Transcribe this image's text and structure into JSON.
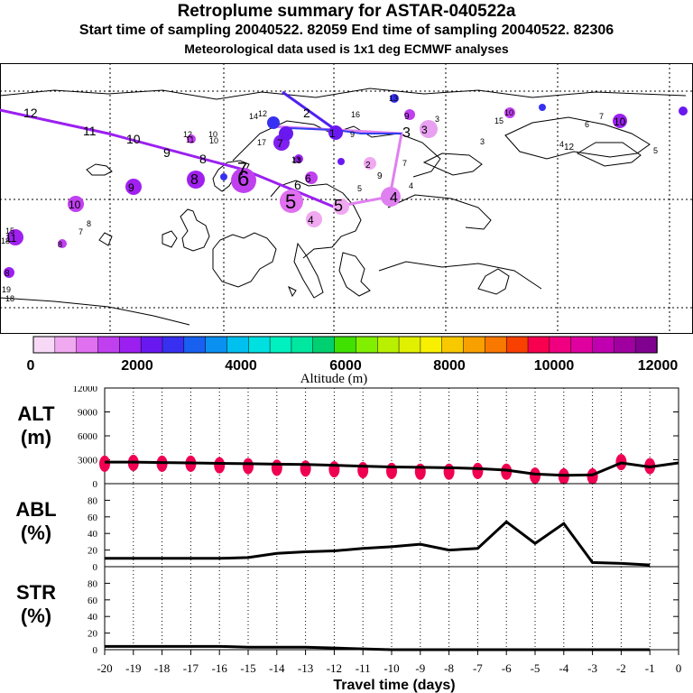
{
  "header": {
    "title": "Retroplume summary for ASTAR-040522a",
    "subtitle_line1": "Start time of sampling 20040522. 82059     End time of sampling 20040522. 82306",
    "subtitle_line2": "Meteorological data used is 1x1 deg ECMWF analyses"
  },
  "colorbar": {
    "title": "Altitude (m)",
    "tick_labels": [
      "0",
      "2000",
      "4000",
      "6000",
      "8000",
      "10000",
      "12000"
    ],
    "colors": [
      "#f7d9f7",
      "#f0a8f0",
      "#e070f0",
      "#c040f0",
      "#9b20f0",
      "#6a18f0",
      "#3830f0",
      "#1860f0",
      "#0a90f0",
      "#00c0f0",
      "#00e0e0",
      "#00f0c0",
      "#00e8a0",
      "#00d070",
      "#40e000",
      "#80f000",
      "#b8f000",
      "#e0f000",
      "#f8f000",
      "#f8c800",
      "#f8a000",
      "#f87800",
      "#f84000",
      "#f80050",
      "#f00080",
      "#e000a0",
      "#c000b0",
      "#a000a0",
      "#800090"
    ]
  },
  "map": {
    "trajectories": [
      {
        "name": "main",
        "color": "#9b20f0",
        "labels": [
          "12",
          "11",
          "10",
          "9",
          "8",
          "7",
          "6",
          "5"
        ]
      },
      {
        "name": "north",
        "color": "#5020f0",
        "labels": [
          "2"
        ]
      },
      {
        "name": "east",
        "color": "#e080f0",
        "labels": [
          "4",
          "3"
        ]
      }
    ],
    "cluster_labels": [
      "15",
      "14",
      "12",
      "11",
      "10",
      "9",
      "8",
      "7",
      "6",
      "5",
      "4",
      "3",
      "2",
      "1",
      "16",
      "17",
      "18",
      "19",
      "13"
    ]
  },
  "chart_data": [
    {
      "type": "line",
      "panel": "ALT",
      "title": "ALT",
      "ylabel": "(m)",
      "ylim": [
        0,
        12000
      ],
      "yticks": [
        "0",
        "3000",
        "6000",
        "9000",
        "12000"
      ],
      "x": [
        -20,
        -19,
        -18,
        -17,
        -16,
        -15,
        -14,
        -13,
        -12,
        -11,
        -10,
        -9,
        -8,
        -7,
        -6,
        -5,
        -4,
        -3,
        -2,
        -1,
        0
      ],
      "values": [
        2700,
        2700,
        2650,
        2600,
        2550,
        2500,
        2450,
        2400,
        2300,
        2200,
        2100,
        2050,
        2000,
        1900,
        1700,
        1200,
        1050,
        1100,
        2600,
        2100,
        2600
      ],
      "clusters": [
        {
          "x": -20,
          "y": 2500
        },
        {
          "x": -19,
          "y": 2600
        },
        {
          "x": -18,
          "y": 2500
        },
        {
          "x": -17,
          "y": 2500
        },
        {
          "x": -16,
          "y": 2300
        },
        {
          "x": -15,
          "y": 2200
        },
        {
          "x": -14,
          "y": 2000
        },
        {
          "x": -13,
          "y": 1900
        },
        {
          "x": -12,
          "y": 1800
        },
        {
          "x": -11,
          "y": 1700
        },
        {
          "x": -10,
          "y": 1600
        },
        {
          "x": -9,
          "y": 1500
        },
        {
          "x": -8,
          "y": 1500
        },
        {
          "x": -7,
          "y": 1600
        },
        {
          "x": -6,
          "y": 1500
        },
        {
          "x": -5,
          "y": 1000
        },
        {
          "x": -4,
          "y": 900
        },
        {
          "x": -3,
          "y": 900
        },
        {
          "x": -2,
          "y": 2700
        },
        {
          "x": -1,
          "y": 2200
        }
      ]
    },
    {
      "type": "line",
      "panel": "ABL",
      "title": "ABL",
      "ylabel": "(%)",
      "ylim": [
        0,
        100
      ],
      "yticks": [
        "0",
        "20",
        "40",
        "60",
        "80"
      ],
      "x": [
        -20,
        -19,
        -18,
        -17,
        -16,
        -15,
        -14,
        -13,
        -12,
        -11,
        -10,
        -9,
        -8,
        -7,
        -6,
        -5,
        -4,
        -3,
        -2,
        -1
      ],
      "values": [
        10,
        10,
        10,
        10,
        10,
        11,
        16,
        18,
        19,
        22,
        24,
        27,
        20,
        22,
        54,
        28,
        52,
        5,
        4,
        2
      ]
    },
    {
      "type": "line",
      "panel": "STR",
      "title": "STR",
      "ylabel": "(%)",
      "ylim": [
        0,
        100
      ],
      "yticks": [
        "0",
        "20",
        "40",
        "60",
        "80"
      ],
      "x": [
        -20,
        -19,
        -18,
        -17,
        -16,
        -15,
        -14,
        -13,
        -12,
        -11,
        -10,
        -9,
        -8,
        -7,
        -6,
        -5,
        -4,
        -3,
        -2,
        -1
      ],
      "values": [
        4,
        4,
        4,
        4,
        4,
        3,
        3,
        3,
        2,
        1,
        0,
        0,
        0,
        0,
        0,
        0,
        0,
        0,
        0,
        0
      ]
    },
    {
      "type": "axis",
      "xlabel": "Travel time (days)",
      "xtick_labels": [
        "-20",
        "-19",
        "-18",
        "-17",
        "-16",
        "-15",
        "-14",
        "-13",
        "-12",
        "-11",
        "-10",
        "-9",
        "-8",
        "-7",
        "-6",
        "-5",
        "-4",
        "-3",
        "-2",
        "-1",
        "0"
      ]
    }
  ]
}
